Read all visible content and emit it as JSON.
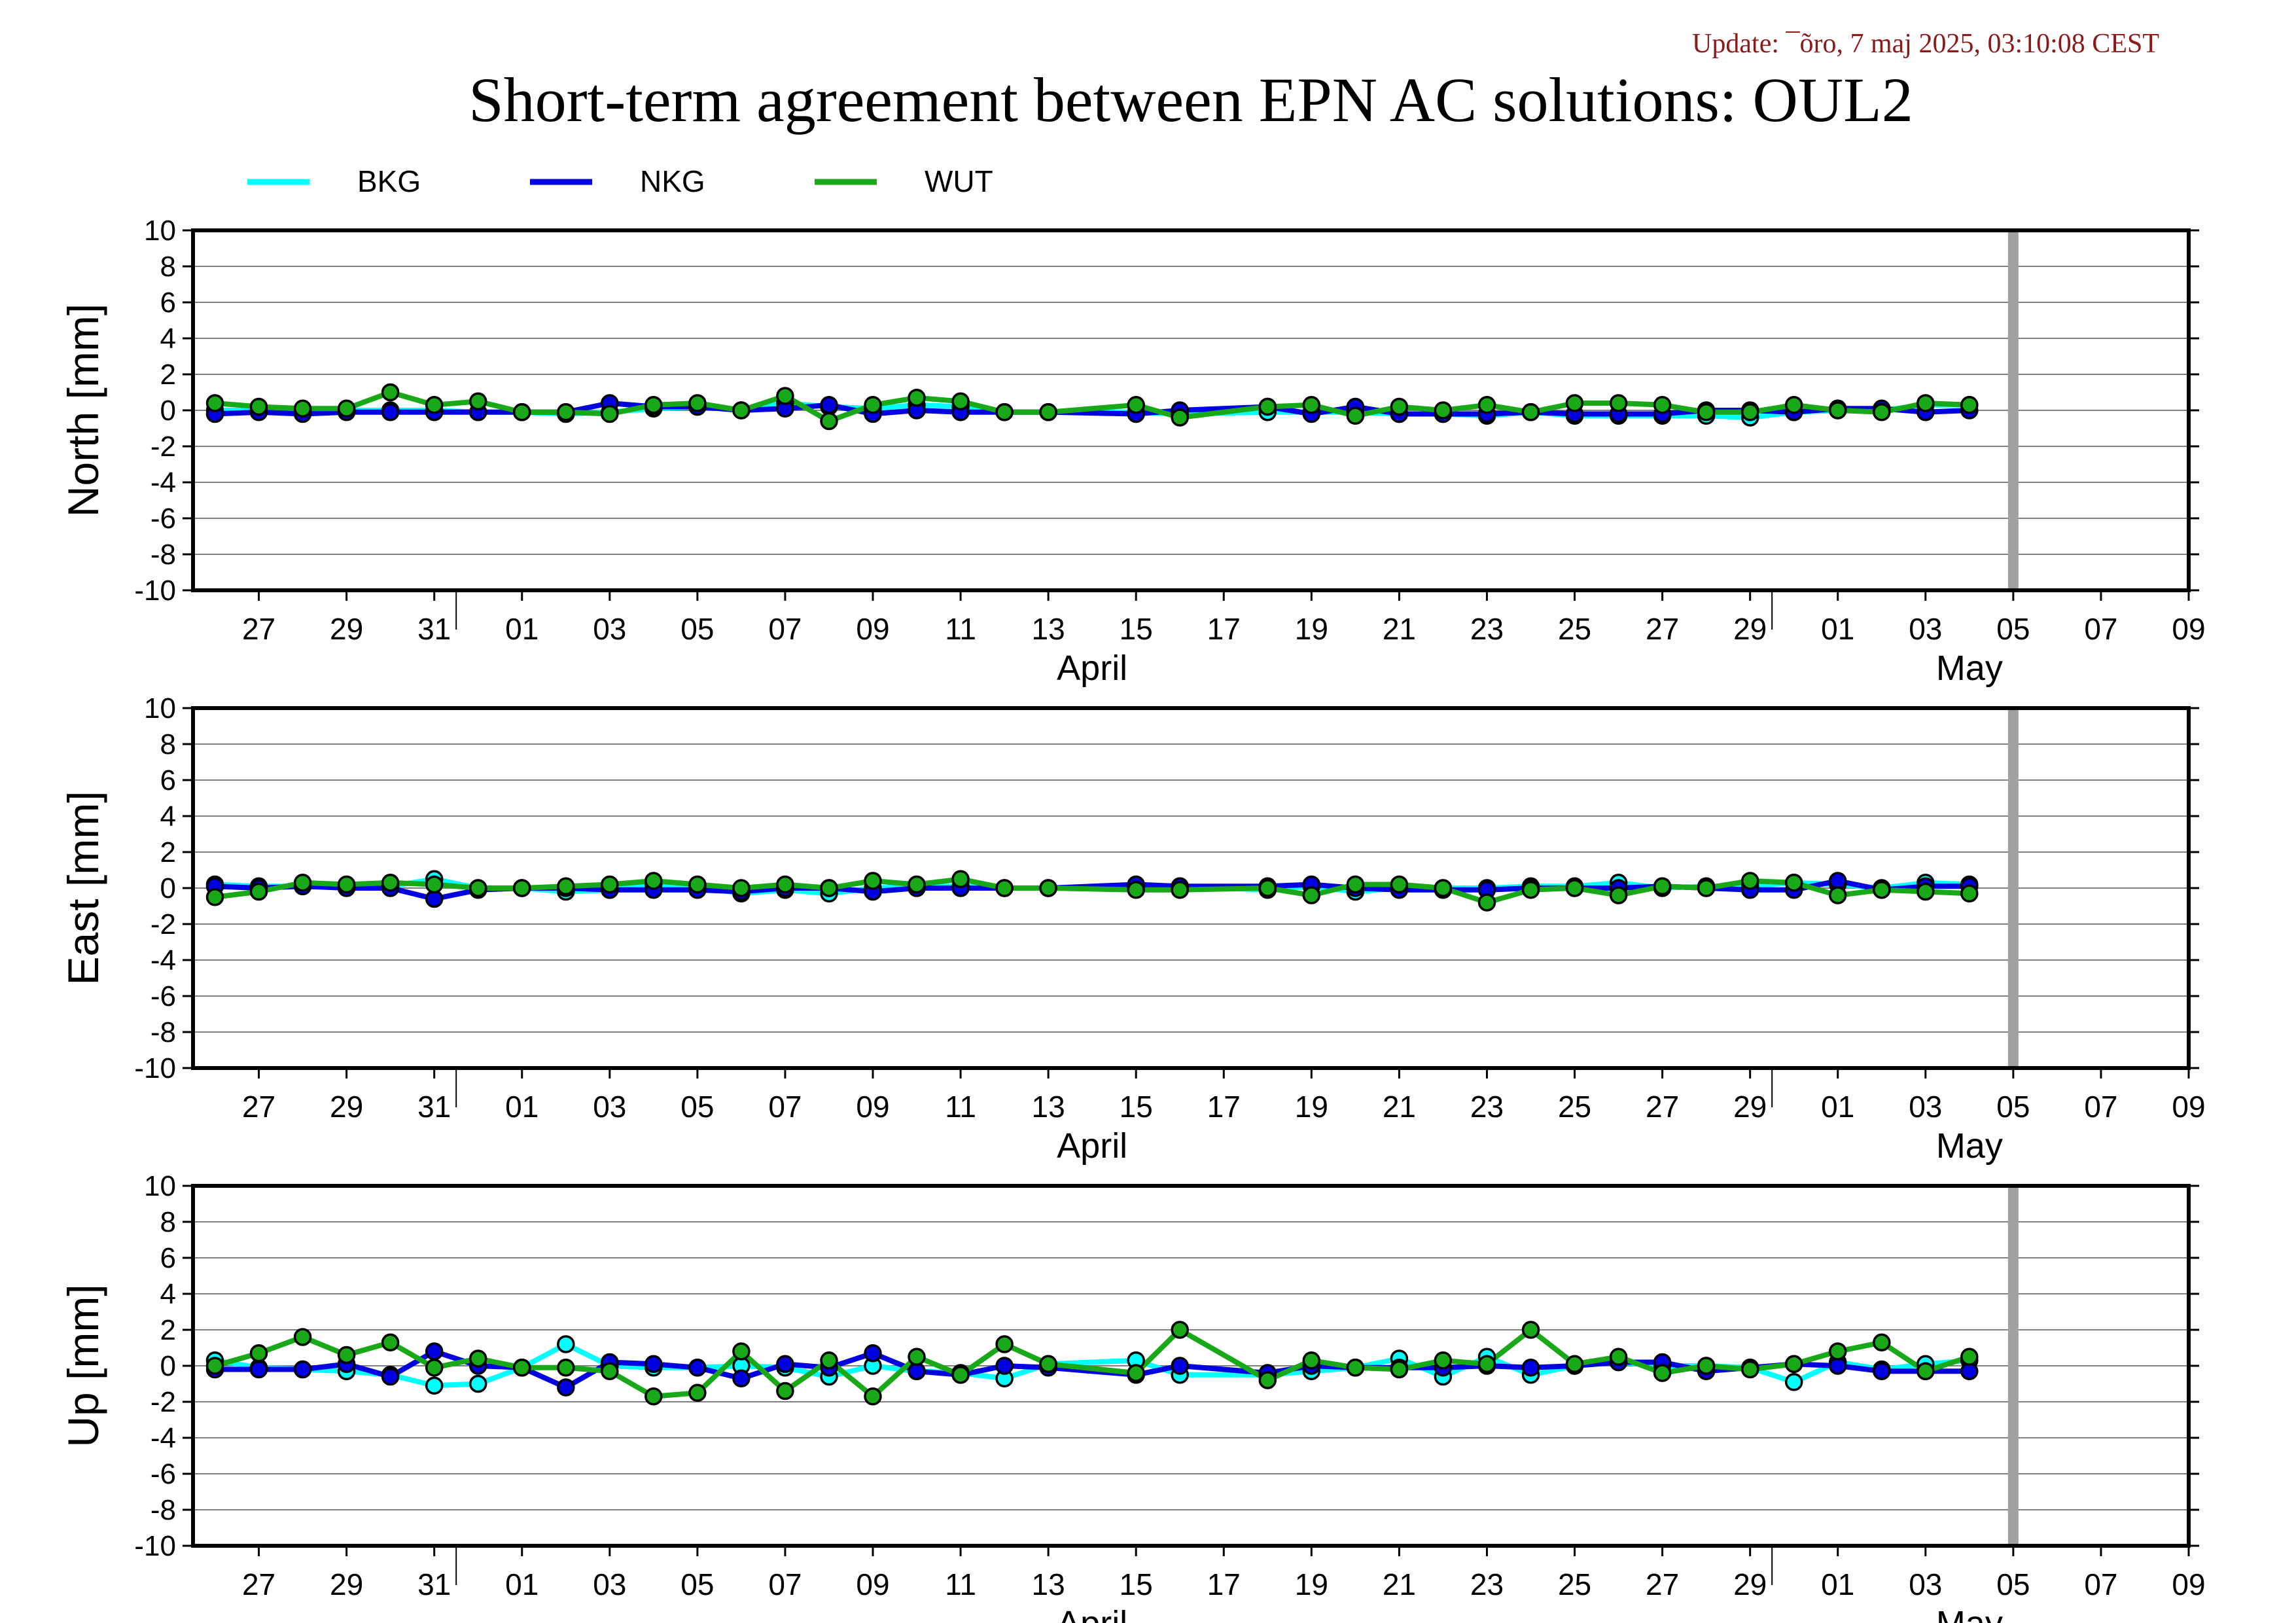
{
  "header": {
    "update_text": "Update: ¯õro, 7 maj 2025, 03:10:08 CEST",
    "title": "Short-term agreement between EPN AC solutions: OUL2"
  },
  "colors": {
    "BKG": "#00ffff",
    "NKG": "#0000e0",
    "WUT": "#18a818",
    "update_text": "#8b1a1a",
    "now_marker": "#a0a0a0",
    "grid": "#808080"
  },
  "chart_data": {
    "type": "line",
    "x_axis": {
      "unit": "day",
      "range": [
        "2025-03-25T12:00",
        "2025-05-10T00:00"
      ],
      "day_ticks": [
        "27",
        "29",
        "31",
        "01",
        "03",
        "05",
        "07",
        "09",
        "11",
        "13",
        "15",
        "17",
        "19",
        "21",
        "23",
        "25",
        "27",
        "29",
        "01",
        "03",
        "05",
        "07",
        "09"
      ],
      "month_labels": [
        "April",
        "May"
      ]
    },
    "now_marker_date": "2025-05-06",
    "legend": {
      "placement": "top-left",
      "entries": [
        {
          "name": "BKG",
          "color": "#00ffff"
        },
        {
          "name": "NKG",
          "color": "#0000e0"
        },
        {
          "name": "WUT",
          "color": "#18a818"
        }
      ]
    },
    "dates": [
      "2025-03-26",
      "2025-03-27",
      "2025-03-28",
      "2025-03-29",
      "2025-03-30",
      "2025-03-31",
      "2025-04-01",
      "2025-04-02",
      "2025-04-03",
      "2025-04-04",
      "2025-04-05",
      "2025-04-06",
      "2025-04-07",
      "2025-04-08",
      "2025-04-09",
      "2025-04-10",
      "2025-04-11",
      "2025-04-12",
      "2025-04-13",
      "2025-04-14",
      "2025-04-16",
      "2025-04-17",
      "2025-04-19",
      "2025-04-20",
      "2025-04-21",
      "2025-04-22",
      "2025-04-23",
      "2025-04-24",
      "2025-04-25",
      "2025-04-26",
      "2025-04-27",
      "2025-04-28",
      "2025-04-29",
      "2025-04-30",
      "2025-05-01",
      "2025-05-02",
      "2025-05-03",
      "2025-05-04",
      "2025-05-05"
    ],
    "panels": [
      {
        "ylabel": "North [mm]",
        "ylim": [
          -10,
          10
        ],
        "yticks": [
          10,
          8,
          6,
          4,
          2,
          0,
          -2,
          -4,
          -6,
          -8,
          -10
        ],
        "series": [
          {
            "name": "BKG",
            "values": [
              0.0,
              0.0,
              0.0,
              0.0,
              0.0,
              0.0,
              -0.1,
              -0.1,
              -0.2,
              -0.1,
              0.1,
              0.2,
              0.0,
              0.4,
              0.2,
              0.1,
              0.3,
              0.2,
              -0.1,
              -0.1,
              -0.1,
              -0.2,
              -0.1,
              -0.1,
              -0.1,
              -0.2,
              -0.2,
              -0.3,
              -0.1,
              -0.3,
              -0.3,
              -0.3,
              -0.3,
              -0.4,
              -0.1,
              0.0,
              0.0,
              0.3,
              0.3
            ]
          },
          {
            "name": "NKG",
            "values": [
              -0.2,
              -0.1,
              -0.2,
              -0.1,
              -0.1,
              -0.1,
              -0.1,
              -0.1,
              -0.1,
              0.4,
              0.2,
              0.2,
              0.0,
              0.1,
              0.3,
              -0.2,
              0.0,
              -0.1,
              -0.1,
              -0.1,
              -0.2,
              0.0,
              0.2,
              -0.2,
              0.2,
              -0.2,
              -0.2,
              -0.2,
              -0.1,
              -0.2,
              -0.2,
              -0.2,
              0.0,
              0.0,
              -0.1,
              0.1,
              0.1,
              -0.1,
              0.0
            ]
          },
          {
            "name": "WUT",
            "values": [
              0.4,
              0.2,
              0.1,
              0.1,
              1.0,
              0.3,
              0.5,
              -0.1,
              -0.1,
              -0.2,
              0.3,
              0.4,
              0.0,
              0.8,
              -0.6,
              0.3,
              0.7,
              0.5,
              -0.1,
              -0.1,
              0.3,
              -0.4,
              0.2,
              0.3,
              -0.3,
              0.2,
              0.0,
              0.3,
              -0.1,
              0.4,
              0.4,
              0.3,
              -0.1,
              -0.1,
              0.3,
              0.0,
              -0.1,
              0.4,
              0.3
            ]
          }
        ]
      },
      {
        "ylabel": "East [mm]",
        "ylim": [
          -10,
          10
        ],
        "yticks": [
          10,
          8,
          6,
          4,
          2,
          0,
          -2,
          -4,
          -6,
          -8,
          -10
        ],
        "series": [
          {
            "name": "BKG",
            "values": [
              0.2,
              0.1,
              0.1,
              0.1,
              0.1,
              0.5,
              0.0,
              0.0,
              -0.2,
              -0.1,
              0.2,
              0.1,
              -0.3,
              -0.1,
              -0.3,
              0.0,
              0.1,
              0.1,
              0.0,
              0.0,
              0.1,
              0.1,
              -0.1,
              0.1,
              -0.2,
              0.0,
              0.0,
              0.0,
              0.1,
              0.1,
              0.3,
              0.0,
              0.1,
              0.1,
              0.3,
              0.2,
              0.0,
              0.3,
              0.2
            ]
          },
          {
            "name": "NKG",
            "values": [
              0.1,
              0.0,
              0.1,
              0.0,
              0.0,
              -0.6,
              -0.1,
              0.0,
              0.0,
              -0.1,
              -0.1,
              -0.1,
              -0.2,
              0.0,
              0.0,
              -0.2,
              0.0,
              0.0,
              0.0,
              0.0,
              0.2,
              0.1,
              0.1,
              0.2,
              0.0,
              -0.1,
              -0.1,
              -0.1,
              0.0,
              0.0,
              0.0,
              0.1,
              0.0,
              -0.1,
              -0.1,
              0.4,
              -0.1,
              0.1,
              0.1
            ]
          },
          {
            "name": "WUT",
            "values": [
              -0.5,
              -0.2,
              0.3,
              0.2,
              0.3,
              0.2,
              0.0,
              0.0,
              0.1,
              0.2,
              0.4,
              0.2,
              0.0,
              0.2,
              0.0,
              0.4,
              0.2,
              0.5,
              0.0,
              0.0,
              -0.1,
              -0.1,
              0.0,
              -0.4,
              0.2,
              0.2,
              0.0,
              -0.8,
              -0.1,
              0.0,
              -0.4,
              0.1,
              0.0,
              0.4,
              0.3,
              -0.4,
              -0.1,
              -0.2,
              -0.3
            ]
          }
        ]
      },
      {
        "ylabel": "Up [mm]",
        "ylim": [
          -10,
          10
        ],
        "yticks": [
          10,
          8,
          6,
          4,
          2,
          0,
          -2,
          -4,
          -6,
          -8,
          -10
        ],
        "series": [
          {
            "name": "BKG",
            "values": [
              0.3,
              -0.1,
              -0.2,
              -0.3,
              -0.5,
              -1.1,
              -1.0,
              -0.1,
              1.2,
              0.0,
              -0.1,
              -0.1,
              0.0,
              -0.1,
              -0.6,
              0.0,
              -0.3,
              -0.4,
              -0.7,
              0.1,
              0.3,
              -0.5,
              -0.5,
              -0.3,
              -0.1,
              0.4,
              -0.6,
              0.5,
              -0.5,
              0.0,
              0.2,
              0.0,
              0.0,
              -0.1,
              -0.9,
              0.2,
              -0.2,
              0.1,
              0.3
            ]
          },
          {
            "name": "NKG",
            "values": [
              -0.2,
              -0.2,
              -0.2,
              0.1,
              -0.6,
              0.8,
              0.0,
              -0.1,
              -1.2,
              0.2,
              0.1,
              -0.1,
              -0.7,
              0.1,
              -0.1,
              0.7,
              -0.3,
              -0.5,
              0.0,
              -0.1,
              -0.5,
              0.0,
              -0.4,
              0.0,
              -0.1,
              -0.1,
              -0.1,
              0.0,
              -0.1,
              0.0,
              0.2,
              0.2,
              -0.3,
              -0.1,
              0.1,
              0.0,
              -0.3,
              -0.3,
              -0.3
            ]
          },
          {
            "name": "WUT",
            "values": [
              0.0,
              0.7,
              1.6,
              0.6,
              1.3,
              -0.1,
              0.4,
              -0.1,
              -0.1,
              -0.3,
              -1.7,
              -1.5,
              0.8,
              -1.4,
              0.3,
              -1.7,
              0.5,
              -0.5,
              1.2,
              0.1,
              -0.4,
              2.0,
              -0.8,
              0.3,
              -0.1,
              -0.2,
              0.3,
              0.1,
              2.0,
              0.1,
              0.5,
              -0.4,
              0.0,
              -0.2,
              0.1,
              0.8,
              1.3,
              -0.3,
              0.5
            ]
          }
        ]
      }
    ]
  }
}
